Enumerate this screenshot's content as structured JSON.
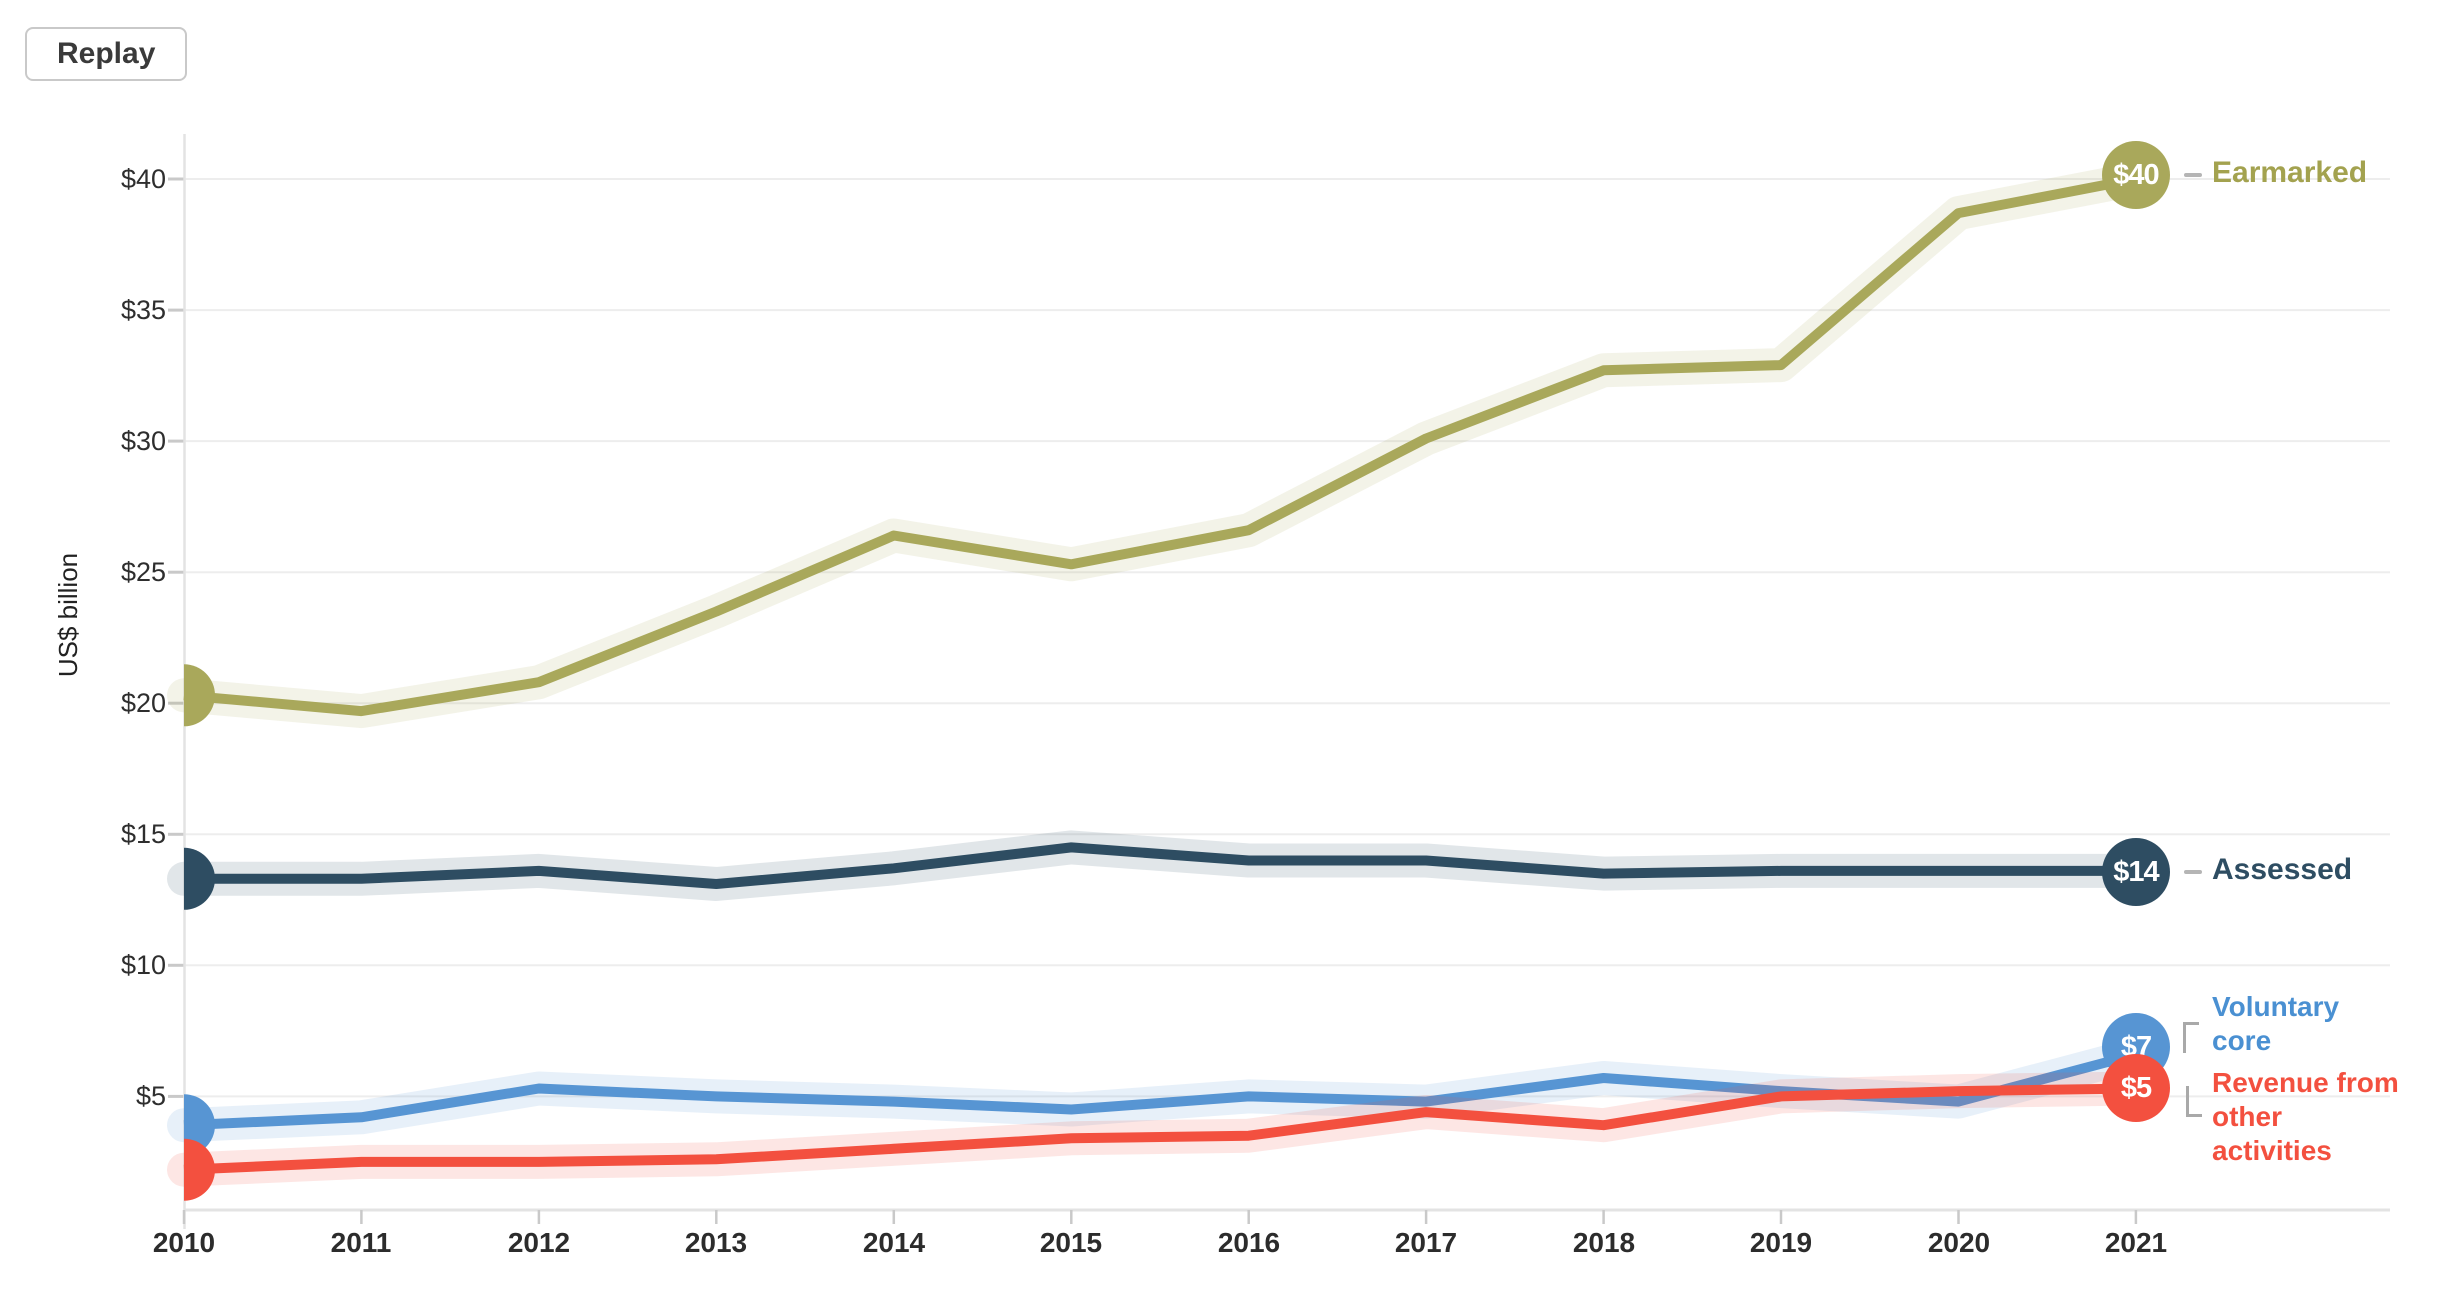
{
  "toolbar": {
    "replay_label": "Replay"
  },
  "chart_data": {
    "type": "line",
    "y_axis_title": "US$ billion",
    "x": [
      2010,
      2011,
      2012,
      2013,
      2014,
      2015,
      2016,
      2017,
      2018,
      2019,
      2020,
      2021
    ],
    "x_labels": [
      "2010",
      "2011",
      "2012",
      "2013",
      "2014",
      "2015",
      "2016",
      "2017",
      "2018",
      "2019",
      "2020",
      "2021"
    ],
    "y_ticks": [
      {
        "value": 5,
        "label": "$5"
      },
      {
        "value": 10,
        "label": "$10"
      },
      {
        "value": 15,
        "label": "$15"
      },
      {
        "value": 20,
        "label": "$20"
      },
      {
        "value": 25,
        "label": "$25"
      },
      {
        "value": 30,
        "label": "$30"
      },
      {
        "value": 35,
        "label": "$35"
      },
      {
        "value": 40,
        "label": "$40"
      }
    ],
    "ylim": [
      0.7,
      41.5
    ],
    "grid": "horizontal",
    "legend_position": "right-end-of-line",
    "series": [
      {
        "name": "Earmarked",
        "label": "Earmarked",
        "color": "#a9a85b",
        "end_badge": "$40",
        "values": [
          20.3,
          19.7,
          20.8,
          23.5,
          26.4,
          25.3,
          26.6,
          30.1,
          32.7,
          32.9,
          38.7,
          40.0
        ]
      },
      {
        "name": "Assessed",
        "label": "Assessed",
        "color": "#2e4d62",
        "end_badge": "$14",
        "values": [
          13.3,
          13.3,
          13.6,
          13.1,
          13.7,
          14.5,
          14.0,
          14.0,
          13.5,
          13.6,
          13.6,
          13.6
        ]
      },
      {
        "name": "Voluntary core",
        "label": "Voluntary core",
        "color": "#5795d3",
        "end_badge": "$7",
        "values": [
          3.9,
          4.2,
          5.3,
          5.0,
          4.8,
          4.5,
          5.0,
          4.8,
          5.7,
          5.2,
          4.8,
          6.6
        ]
      },
      {
        "name": "Revenue from other activities",
        "label": "Revenue from other activities",
        "color": "#f3503f",
        "end_badge": "$5",
        "values": [
          2.2,
          2.5,
          2.5,
          2.6,
          3.0,
          3.4,
          3.5,
          4.4,
          3.9,
          5.0,
          5.2,
          5.3
        ]
      }
    ]
  }
}
